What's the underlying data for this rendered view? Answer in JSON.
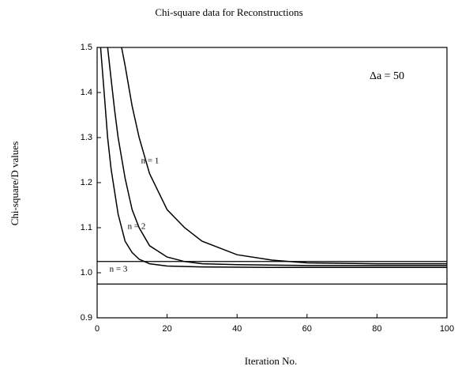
{
  "chart_data": {
    "type": "line",
    "title": "Chi-square data for Reconstructions",
    "x_label": "Iteration No.",
    "y_label": "Chi-square/D values",
    "annotations": [
      "n = 1",
      "n = 2",
      "n = 3",
      "Δa = 50"
    ],
    "color": "#000000",
    "series": [
      {
        "x": [
          7,
          8,
          10,
          12,
          15,
          20,
          25,
          30,
          40,
          50,
          60,
          80,
          100
        ],
        "values": [
          1.5,
          1.46,
          1.37,
          1.3,
          1.22,
          1.14,
          1.1,
          1.07,
          1.04,
          1.028,
          1.022,
          1.02,
          1.02
        ]
      },
      {
        "x": [
          3,
          4,
          5,
          6,
          8,
          10,
          12,
          15,
          20,
          25,
          30,
          40,
          60,
          100
        ],
        "values": [
          1.5,
          1.43,
          1.36,
          1.3,
          1.21,
          1.14,
          1.1,
          1.06,
          1.035,
          1.025,
          1.02,
          1.018,
          1.016,
          1.016
        ]
      },
      {
        "x": [
          1,
          2,
          3,
          4,
          6,
          8,
          10,
          12,
          15,
          20,
          30,
          50,
          100
        ],
        "values": [
          1.5,
          1.4,
          1.3,
          1.23,
          1.13,
          1.07,
          1.045,
          1.03,
          1.02,
          1.015,
          1.013,
          1.012,
          1.012
        ]
      }
    ],
    "reference_lines": [
      1.025,
      0.975
    ],
    "xlim": [
      0,
      100
    ],
    "xticks": [
      0,
      20,
      40,
      60,
      80,
      100
    ],
    "ylim": [
      0.9,
      1.5
    ],
    "yticks": [
      0.9,
      {
        "value": 1,
        "label": "1.0"
      },
      1.1,
      1.2,
      1.3,
      1.4,
      1.5
    ]
  }
}
